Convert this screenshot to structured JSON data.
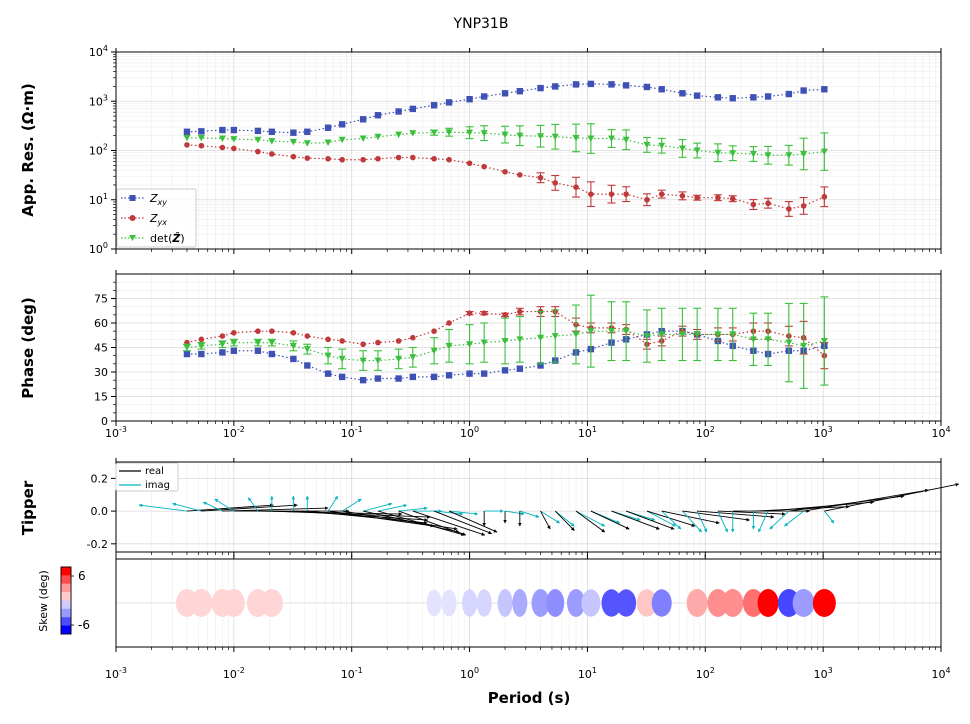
{
  "title": "YNP31B",
  "xlabel": "Period (s)",
  "x_tick_labels": [
    "10^-3",
    "10^-2",
    "10^-1",
    "10^0",
    "10^1",
    "10^2",
    "10^3",
    "10^4"
  ],
  "colors": {
    "zxy": "#3f51b5",
    "zyx": "#c0393b",
    "det": "#3cbf3c",
    "tipper_real": "#000000",
    "tipper_imag": "#00b3bf"
  },
  "chart_data": [
    {
      "panel": "apparent-resistivity",
      "type": "scatter",
      "ylabel": "App. Res. (Ω·m)",
      "y_scale": "log",
      "x_scale": "log",
      "xlim": [
        0.001,
        10000
      ],
      "ylim": [
        1,
        10000
      ],
      "y_tick_labels": [
        "10^0",
        "10^1",
        "10^2",
        "10^3",
        "10^4"
      ],
      "grid": true,
      "legend_position": "lower-left",
      "series": [
        {
          "name": "Z_xy",
          "legend_base": "Z",
          "legend_sub": "xy",
          "marker": "square",
          "color_key": "zxy",
          "x": [
            0.004,
            0.0053,
            0.008,
            0.01,
            0.016,
            0.021,
            0.032,
            0.042,
            0.063,
            0.083,
            0.125,
            0.167,
            0.25,
            0.33,
            0.5,
            0.67,
            1.0,
            1.33,
            2.0,
            2.67,
            4.0,
            5.33,
            8.0,
            10.7,
            16,
            21.3,
            32,
            42.7,
            64,
            85.3,
            128,
            171,
            256,
            341,
            512,
            683,
            1024
          ],
          "y": [
            240,
            245,
            260,
            260,
            250,
            240,
            230,
            240,
            290,
            340,
            430,
            520,
            620,
            700,
            830,
            950,
            1100,
            1250,
            1450,
            1600,
            1850,
            2000,
            2200,
            2250,
            2200,
            2100,
            1950,
            1750,
            1450,
            1300,
            1200,
            1150,
            1200,
            1250,
            1400,
            1650,
            1750
          ],
          "err": [
            0,
            0,
            0,
            0,
            0,
            0,
            0,
            0,
            0,
            0,
            0,
            0,
            0,
            0,
            0,
            0,
            0,
            0,
            0,
            0,
            0,
            0,
            0,
            0,
            0,
            0,
            0,
            0,
            0,
            0,
            0,
            0,
            0,
            0,
            0,
            0,
            0
          ]
        },
        {
          "name": "Z_yx",
          "legend_base": "Z",
          "legend_sub": "yx",
          "marker": "circle",
          "color_key": "zyx",
          "x": [
            0.004,
            0.0053,
            0.008,
            0.01,
            0.016,
            0.021,
            0.032,
            0.042,
            0.063,
            0.083,
            0.125,
            0.167,
            0.25,
            0.33,
            0.5,
            0.67,
            1.0,
            1.33,
            2.0,
            2.67,
            4.0,
            5.33,
            8.0,
            10.7,
            16,
            21.3,
            32,
            42.7,
            64,
            85.3,
            128,
            171,
            256,
            341,
            512,
            683,
            1024
          ],
          "y": [
            130,
            125,
            115,
            110,
            95,
            85,
            75,
            70,
            68,
            65,
            65,
            68,
            72,
            72,
            68,
            65,
            55,
            47,
            37,
            32,
            28,
            22,
            18,
            13,
            13,
            13,
            10,
            13,
            12,
            11,
            11,
            10.5,
            8,
            8.5,
            6.5,
            7.5,
            11.5
          ],
          "err": [
            0,
            0,
            0,
            0,
            0,
            0,
            0,
            0,
            0,
            0,
            0,
            0,
            0,
            0,
            0,
            0,
            0,
            0,
            0,
            0,
            0.1,
            0.15,
            0.2,
            0.25,
            0.18,
            0.15,
            0.12,
            0.08,
            0.08,
            0.05,
            0.06,
            0.06,
            0.1,
            0.1,
            0.15,
            0.17,
            0.2
          ]
        },
        {
          "name": "det(Ẑ)",
          "legend_base": "det(",
          "legend_bold": "Ẑ",
          "legend_tail": ")",
          "marker": "triangle-down",
          "color_key": "det",
          "x": [
            0.004,
            0.0053,
            0.008,
            0.01,
            0.016,
            0.021,
            0.032,
            0.042,
            0.063,
            0.083,
            0.125,
            0.167,
            0.25,
            0.33,
            0.5,
            0.67,
            1.0,
            1.33,
            2.0,
            2.67,
            4.0,
            5.33,
            8.0,
            10.7,
            16,
            21.3,
            32,
            42.7,
            64,
            85.3,
            128,
            171,
            256,
            341,
            512,
            683,
            1024
          ],
          "y": [
            180,
            180,
            175,
            170,
            165,
            155,
            150,
            140,
            145,
            165,
            175,
            190,
            210,
            225,
            230,
            235,
            230,
            225,
            210,
            200,
            195,
            190,
            180,
            175,
            175,
            165,
            130,
            125,
            110,
            100,
            90,
            88,
            85,
            80,
            80,
            85,
            95
          ],
          "err": [
            0,
            0,
            0,
            0,
            0,
            0,
            0,
            0,
            0,
            0,
            0,
            0,
            0,
            0,
            0.05,
            0.08,
            0.12,
            0.15,
            0.17,
            0.2,
            0.22,
            0.25,
            0.28,
            0.3,
            0.18,
            0.2,
            0.15,
            0.15,
            0.18,
            0.15,
            0.18,
            0.15,
            0.15,
            0.18,
            0.2,
            0.32,
            0.38
          ]
        }
      ]
    },
    {
      "panel": "phase",
      "type": "scatter",
      "ylabel": "Phase (deg)",
      "x_scale": "log",
      "xlim": [
        0.001,
        10000
      ],
      "ylim": [
        0,
        90
      ],
      "y_ticks": [
        0,
        15,
        30,
        45,
        60,
        75
      ],
      "grid": true,
      "series": [
        {
          "name": "Z_xy",
          "marker": "square",
          "color_key": "zxy",
          "x": [
            0.004,
            0.0053,
            0.008,
            0.01,
            0.016,
            0.021,
            0.032,
            0.042,
            0.063,
            0.083,
            0.125,
            0.167,
            0.25,
            0.33,
            0.5,
            0.67,
            1.0,
            1.33,
            2.0,
            2.67,
            4.0,
            5.33,
            8.0,
            10.7,
            16,
            21.3,
            32,
            42.7,
            64,
            85.3,
            128,
            171,
            256,
            341,
            512,
            683,
            1024
          ],
          "y": [
            41,
            41,
            42,
            43,
            43,
            41,
            38,
            34,
            29,
            27,
            25,
            26,
            26,
            27,
            27,
            28,
            29,
            29,
            31,
            32,
            34,
            37,
            42,
            44,
            48,
            50,
            53,
            55,
            55,
            53,
            49,
            46,
            43,
            41,
            43,
            43,
            46
          ],
          "err": [
            0,
            0,
            0,
            0,
            0,
            0,
            0,
            0,
            0,
            0,
            0,
            0,
            0,
            0,
            0,
            0,
            0,
            0,
            0,
            0,
            0,
            0,
            0,
            0,
            0,
            0,
            0,
            0,
            0,
            0,
            0,
            0,
            0,
            0,
            0,
            0,
            0
          ]
        },
        {
          "name": "Z_yx",
          "marker": "circle",
          "color_key": "zyx",
          "x": [
            0.004,
            0.0053,
            0.008,
            0.01,
            0.016,
            0.021,
            0.032,
            0.042,
            0.063,
            0.083,
            0.125,
            0.167,
            0.25,
            0.33,
            0.5,
            0.67,
            1.0,
            1.33,
            2.0,
            2.67,
            4.0,
            5.33,
            8.0,
            10.7,
            16,
            21.3,
            32,
            42.7,
            64,
            85.3,
            128,
            171,
            256,
            341,
            512,
            683,
            1024
          ],
          "y": [
            48,
            50,
            52,
            54,
            55,
            55,
            54,
            52,
            50,
            49,
            47,
            48,
            49,
            51,
            55,
            60,
            66,
            66,
            65,
            67,
            67,
            67,
            59,
            57,
            57,
            56,
            47,
            49,
            55,
            53,
            53,
            53,
            55,
            55,
            52,
            51,
            40
          ],
          "err": [
            0,
            0,
            0,
            0,
            0,
            0,
            0,
            0,
            0,
            0,
            0,
            0,
            0,
            0,
            0,
            0,
            1,
            1,
            1,
            2,
            3,
            3,
            4,
            3,
            3,
            3,
            3,
            3,
            3,
            3,
            4,
            4,
            5,
            5,
            6,
            10,
            8
          ]
        },
        {
          "name": "det(Ẑ)",
          "marker": "triangle-down",
          "color_key": "det",
          "x": [
            0.004,
            0.0053,
            0.008,
            0.01,
            0.016,
            0.021,
            0.032,
            0.042,
            0.063,
            0.083,
            0.125,
            0.167,
            0.25,
            0.33,
            0.5,
            0.67,
            1.0,
            1.33,
            2.0,
            2.67,
            4.0,
            5.33,
            8.0,
            10.7,
            16,
            21.3,
            32,
            42.7,
            64,
            85.3,
            128,
            171,
            256,
            341,
            512,
            683,
            1024
          ],
          "y": [
            45,
            46,
            47,
            48,
            48,
            48,
            46,
            44,
            40,
            38,
            37,
            37,
            38,
            39,
            43,
            46,
            47,
            48,
            49,
            50,
            51,
            52,
            53,
            55,
            55,
            55,
            52,
            53,
            53,
            53,
            53,
            53,
            50,
            50,
            48,
            46,
            49
          ],
          "err": [
            2,
            2,
            2,
            2,
            2,
            2,
            3,
            3,
            5,
            6,
            6,
            6,
            6,
            6,
            8,
            10,
            12,
            12,
            14,
            14,
            16,
            16,
            18,
            22,
            18,
            18,
            16,
            16,
            16,
            16,
            16,
            16,
            16,
            16,
            24,
            26,
            27
          ]
        }
      ]
    },
    {
      "panel": "tipper",
      "type": "quiver",
      "ylabel": "Tipper",
      "x_scale": "log",
      "xlim": [
        0.001,
        10000
      ],
      "ylim": [
        -0.25,
        0.3
      ],
      "y_ticks": [
        -0.2,
        0.0,
        0.2
      ],
      "legend_position": "upper-left",
      "legend": [
        "real",
        "imag"
      ],
      "arrow_period": [
        0.004,
        0.0053,
        0.008,
        0.01,
        0.016,
        0.021,
        0.032,
        0.042,
        0.063,
        0.083,
        0.125,
        0.167,
        0.25,
        0.33,
        0.5,
        0.67,
        1.33,
        2.0,
        2.67,
        4.0,
        5.33,
        8.0,
        10.7,
        16,
        21.3,
        32,
        42.7,
        64,
        85.3,
        128,
        171,
        256,
        341,
        512,
        683,
        1024
      ],
      "real_tx": [
        0.18,
        0.2,
        0.22,
        0.24,
        0.3,
        0.33,
        0.28,
        0.25,
        0.22,
        0.24,
        0.2,
        0.18,
        0.14,
        0.15,
        0.12,
        0.1,
        0.0,
        0.0,
        0.0,
        0.02,
        0.04,
        0.06,
        0.08,
        0.1,
        0.1,
        0.1,
        0.12,
        0.14,
        0.16,
        0.14,
        0.16,
        0.2,
        0.22,
        0.24,
        0.26,
        0.28
      ],
      "real_ty": [
        0.04,
        0.04,
        0.02,
        0.0,
        -0.02,
        -0.04,
        -0.06,
        -0.08,
        -0.1,
        -0.12,
        -0.14,
        -0.16,
        -0.16,
        -0.16,
        -0.15,
        -0.14,
        -0.1,
        -0.08,
        -0.1,
        -0.12,
        -0.13,
        -0.14,
        -0.12,
        -0.12,
        -0.12,
        -0.1,
        -0.08,
        -0.06,
        -0.04,
        -0.02,
        0.0,
        0.03,
        0.06,
        0.1,
        0.14,
        0.18
      ],
      "imag_tx": [
        -0.1,
        -0.06,
        -0.04,
        -0.04,
        -0.02,
        0.0,
        0.0,
        0.0,
        0.02,
        0.04,
        0.06,
        0.06,
        0.06,
        0.06,
        0.06,
        0.06,
        0.04,
        0.04,
        0.04,
        0.04,
        0.04,
        0.06,
        0.06,
        0.06,
        0.06,
        0.06,
        0.04,
        0.04,
        0.02,
        0.02,
        0.0,
        0.0,
        -0.02,
        -0.04,
        -0.04,
        0.02
      ],
      "imag_ty": [
        0.04,
        0.05,
        0.06,
        0.08,
        0.09,
        0.1,
        0.1,
        0.1,
        0.1,
        0.08,
        0.05,
        0.04,
        0.02,
        0.0,
        -0.02,
        -0.02,
        0.0,
        -0.02,
        -0.04,
        -0.08,
        -0.1,
        -0.1,
        -0.08,
        -0.06,
        -0.06,
        -0.1,
        -0.12,
        -0.14,
        -0.14,
        -0.14,
        -0.14,
        -0.12,
        -0.14,
        -0.12,
        -0.1,
        -0.08
      ]
    },
    {
      "panel": "skew",
      "type": "ellipse",
      "colorbar_label": "Skew (deg)",
      "colorbar_ticks": [
        "6",
        "-6"
      ],
      "clim": [
        -9,
        9
      ],
      "x_scale": "log",
      "xlim": [
        0.001,
        10000
      ],
      "period": [
        0.004,
        0.0053,
        0.008,
        0.01,
        0.016,
        0.021,
        0.5,
        0.67,
        1.0,
        1.33,
        2.0,
        2.67,
        4.0,
        5.33,
        8.0,
        10.7,
        16,
        21.3,
        32,
        42.7,
        85.3,
        128,
        171,
        256,
        341,
        512,
        683,
        1024
      ],
      "skew": [
        1.5,
        1.5,
        1.5,
        1.5,
        1.5,
        1.5,
        -1,
        -1,
        -1.5,
        -1.5,
        -2,
        -3,
        -3.5,
        -4,
        -3.5,
        -2,
        -6,
        -6,
        2,
        -4.5,
        3,
        4,
        4,
        5,
        9,
        -6.5,
        -3.5,
        9
      ],
      "phimin": [
        44,
        44,
        44,
        44,
        44,
        44,
        30,
        30,
        30,
        30,
        30,
        30,
        36,
        36,
        36,
        38,
        40,
        40,
        41,
        40,
        42,
        42,
        42,
        42,
        42,
        44,
        44,
        46
      ],
      "phimax": [
        48,
        48,
        48,
        48,
        48,
        48,
        46,
        46,
        47,
        47,
        48,
        48,
        48,
        48,
        48,
        47,
        47,
        47,
        47,
        47,
        48,
        48,
        48,
        48,
        48,
        48,
        48,
        48
      ]
    }
  ]
}
